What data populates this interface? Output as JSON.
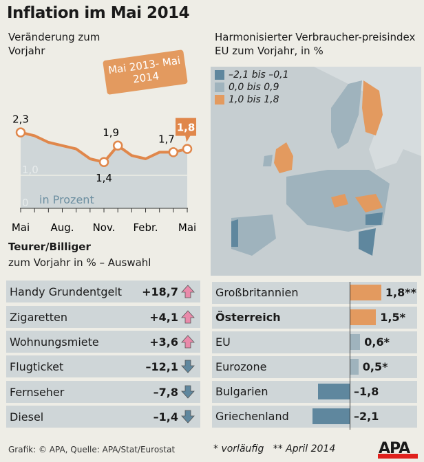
{
  "title": "Inflation im Mai 2014",
  "chart_data": [
    {
      "type": "line",
      "subtitle": "Veränderung zum Vorjahr",
      "badge": "Mai 2013- Mai 2014",
      "unit_label": "in Prozent",
      "x_ticks": [
        "Mai",
        "Aug.",
        "Nov.",
        "Febr.",
        "Mai"
      ],
      "x": [
        "Mai 2013",
        "Jun 2013",
        "Jul 2013",
        "Aug 2013",
        "Sep 2013",
        "Okt 2013",
        "Nov 2013",
        "Dez 2013",
        "Jan 2014",
        "Feb 2014",
        "Mär 2014",
        "Apr 2014",
        "Mai 2014"
      ],
      "values": [
        2.3,
        2.2,
        2.0,
        1.9,
        1.8,
        1.5,
        1.4,
        1.9,
        1.6,
        1.5,
        1.7,
        1.7,
        1.8
      ],
      "labeled_points": [
        {
          "index": 0,
          "label": "2,3"
        },
        {
          "index": 6,
          "label": "1,4"
        },
        {
          "index": 7,
          "label": "1,9"
        },
        {
          "index": 11,
          "label": "1,7"
        },
        {
          "index": 12,
          "label": "1,8",
          "highlight": true
        }
      ],
      "y_ticks": [
        {
          "v": 0,
          "label": "0"
        },
        {
          "v": 1,
          "label": "1,0"
        }
      ],
      "ylim": [
        0,
        2.5
      ],
      "line_color": "#e0874b",
      "fill_color": "#cfd6d8"
    },
    {
      "type": "table",
      "title": "Teurer/Billiger",
      "subtitle": "zum Vorjahr in % – Auswahl",
      "rows": [
        {
          "label": "Handy Grundentgelt",
          "value": "+18,7",
          "dir": "up"
        },
        {
          "label": "Zigaretten",
          "value": "+4,1",
          "dir": "up"
        },
        {
          "label": "Wohnungsmiete",
          "value": "+3,6",
          "dir": "up"
        },
        {
          "label": "Flugticket",
          "value": "–12,1",
          "dir": "down"
        },
        {
          "label": "Fernseher",
          "value": "–7,8",
          "dir": "down"
        },
        {
          "label": "Diesel",
          "value": "–1,4",
          "dir": "down"
        }
      ],
      "up_color": "#e98aaa",
      "down_color": "#5f879e"
    },
    {
      "type": "bar",
      "orientation": "horizontal",
      "categories": [
        "Großbritannien",
        "Österreich",
        "EU",
        "Eurozone",
        "Bulgarien",
        "Griechenland"
      ],
      "values": [
        1.8,
        1.5,
        0.6,
        0.5,
        -1.8,
        -2.1
      ],
      "value_labels": [
        "1,8**",
        "1,5*",
        "0,6*",
        "0,5*",
        "–1,8",
        "–2,1"
      ],
      "bold_category": "Österreich"
    }
  ],
  "map": {
    "title": "Harmonisierter Verbraucher-preisindex EU zum Vorjahr, in %",
    "legend": [
      {
        "label": "–2,1 bis –0,1",
        "color": "#5f879e"
      },
      {
        "label": "0,0 bis 0,9",
        "color": "#9fb3bd"
      },
      {
        "label": "1,0 bis 1,8",
        "color": "#e39a5f"
      }
    ]
  },
  "footer": {
    "credit": "Grafik: © APA, Quelle: APA/Stat/Eurostat",
    "note1": "* vorläufig",
    "note2": "** April 2014",
    "logo": "APA"
  }
}
